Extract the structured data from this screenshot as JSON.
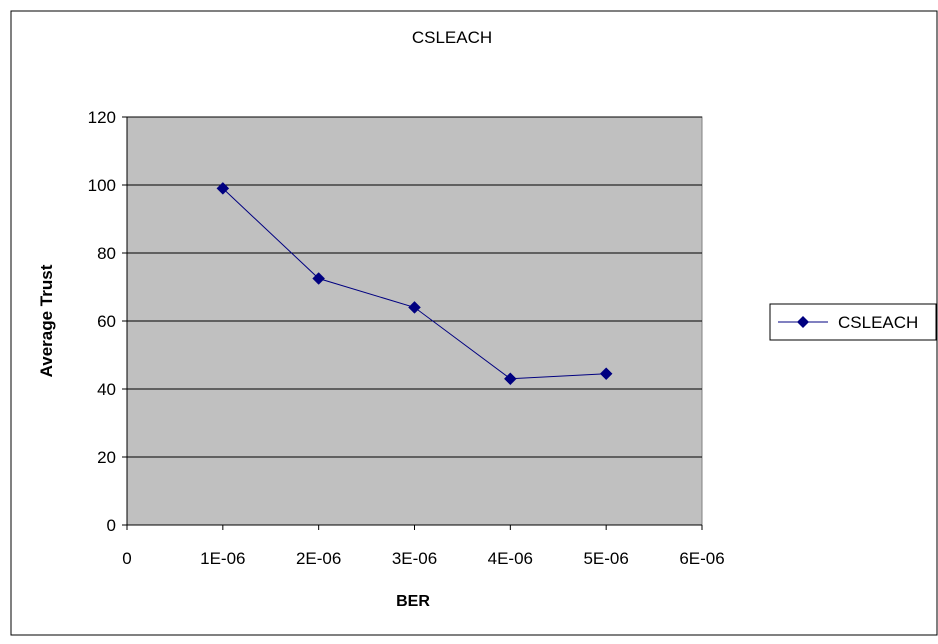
{
  "chart_data": {
    "type": "scatter",
    "title": "CSLEACH",
    "xlabel": "BER",
    "ylabel": "Average  Trust",
    "xlim": [
      0,
      6e-06
    ],
    "ylim": [
      0,
      120
    ],
    "x_ticks": [
      0,
      1e-06,
      2e-06,
      3e-06,
      4e-06,
      5e-06,
      6e-06
    ],
    "x_tick_labels": [
      "0",
      "1E-06",
      "2E-06",
      "3E-06",
      "4E-06",
      "5E-06",
      "6E-06"
    ],
    "y_ticks": [
      0,
      20,
      40,
      60,
      80,
      100,
      120
    ],
    "y_tick_labels": [
      "0",
      "20",
      "40",
      "60",
      "80",
      "100",
      "120"
    ],
    "grid": "horizontal",
    "legend_position": "right",
    "plot_background": "#c0c0c0",
    "series": [
      {
        "name": "CSLEACH",
        "color": "#000080",
        "marker": "diamond",
        "line": true,
        "x": [
          1e-06,
          2e-06,
          3e-06,
          4e-06,
          5e-06
        ],
        "y": [
          99,
          72.5,
          64,
          43,
          44.5
        ]
      }
    ]
  }
}
